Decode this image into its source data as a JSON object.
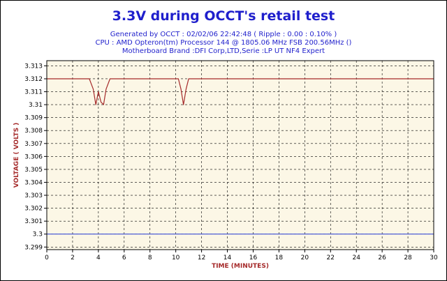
{
  "colors": {
    "title": "#1f1fcc",
    "subtitle": "#1f1fcc",
    "axis_title": "#a52a2a",
    "plot_bg": "#fcf7e6",
    "grid": "#000000",
    "voltage_line": "#a52a2a",
    "reference_line": "#3b4fd6"
  },
  "header": {
    "title": "3.3V during OCCT's retail test",
    "lines": [
      "Generated by OCCT : 02/02/06 22:42:48 ( Ripple : 0.00 : 0.10% )",
      "CPU : AMD Opteron(tm) Processor 144    @ 1805.06 MHz FSB 200.56MHz ()",
      "Motherboard Brand :DFI Corp,LTD,Serie :LP UT NF4 Expert"
    ]
  },
  "chart_data": {
    "type": "line",
    "title": "3.3V during OCCT's retail test",
    "xlabel": "TIME (MINUTES)",
    "ylabel": "VOLTAGE ( VOLTS )",
    "xlim": [
      0,
      30
    ],
    "ylim": [
      3.2988,
      3.3134
    ],
    "x_ticks": [
      0,
      2,
      4,
      6,
      8,
      10,
      12,
      14,
      16,
      18,
      20,
      22,
      24,
      26,
      28,
      30
    ],
    "y_ticks": [
      3.299,
      3.3,
      3.301,
      3.302,
      3.303,
      3.304,
      3.305,
      3.306,
      3.307,
      3.308,
      3.309,
      3.31,
      3.311,
      3.312,
      3.313
    ],
    "y_tick_labels": [
      "3.299",
      "3.3",
      "3.301",
      "3.302",
      "3.303",
      "3.304",
      "3.305",
      "3.306",
      "3.307",
      "3.308",
      "3.309",
      "3.31",
      "3.311",
      "3.312",
      "3.313"
    ],
    "grid": true,
    "series": [
      {
        "color": "#a52a2a",
        "x": [
          0,
          3.3,
          3.6,
          3.8,
          4.0,
          4.2,
          4.4,
          4.6,
          4.9,
          10.2,
          10.4,
          10.6,
          10.8,
          11.0,
          30
        ],
        "y": [
          3.312,
          3.312,
          3.3112,
          3.31,
          3.311,
          3.3102,
          3.31,
          3.3112,
          3.312,
          3.312,
          3.3112,
          3.31,
          3.3112,
          3.312,
          3.312
        ]
      },
      {
        "color": "#3b4fd6",
        "x": [
          0,
          30
        ],
        "y": [
          3.3,
          3.3
        ]
      }
    ]
  }
}
